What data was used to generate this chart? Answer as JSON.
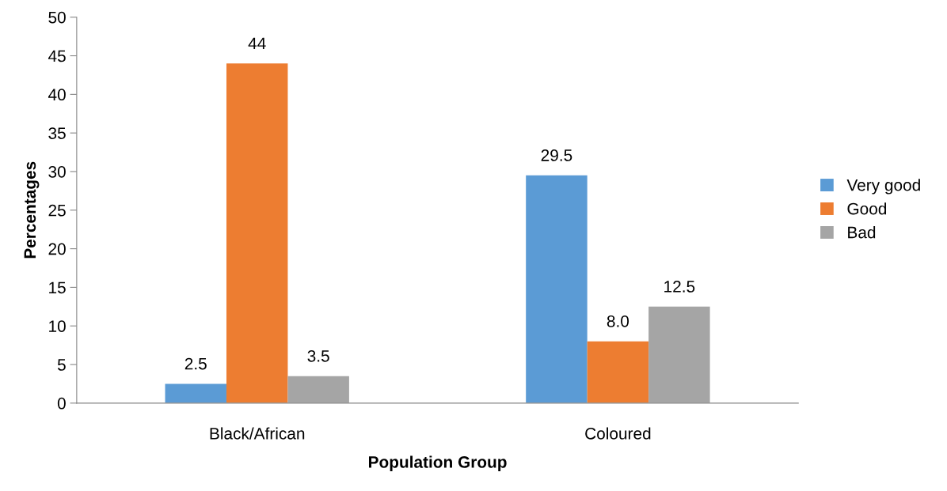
{
  "chart_data": {
    "type": "bar",
    "xlabel": "Population Group",
    "ylabel": "Percentages",
    "categories": [
      "Black/African",
      "Coloured"
    ],
    "series": [
      {
        "name": "Very good",
        "color": "#5b9bd5",
        "values": [
          2.5,
          29.5
        ],
        "value_labels": [
          "2.5",
          "29.5"
        ]
      },
      {
        "name": "Good",
        "color": "#ed7d31",
        "values": [
          44,
          8.0
        ],
        "value_labels": [
          "44",
          "8.0"
        ]
      },
      {
        "name": "Bad",
        "color": "#a5a5a5",
        "values": [
          3.5,
          12.5
        ],
        "value_labels": [
          "3.5",
          "12.5"
        ]
      }
    ],
    "ylim": [
      0,
      50
    ],
    "yticks": [
      0,
      5,
      10,
      15,
      20,
      25,
      30,
      35,
      40,
      45,
      50
    ],
    "grid": false,
    "legend": "right"
  }
}
